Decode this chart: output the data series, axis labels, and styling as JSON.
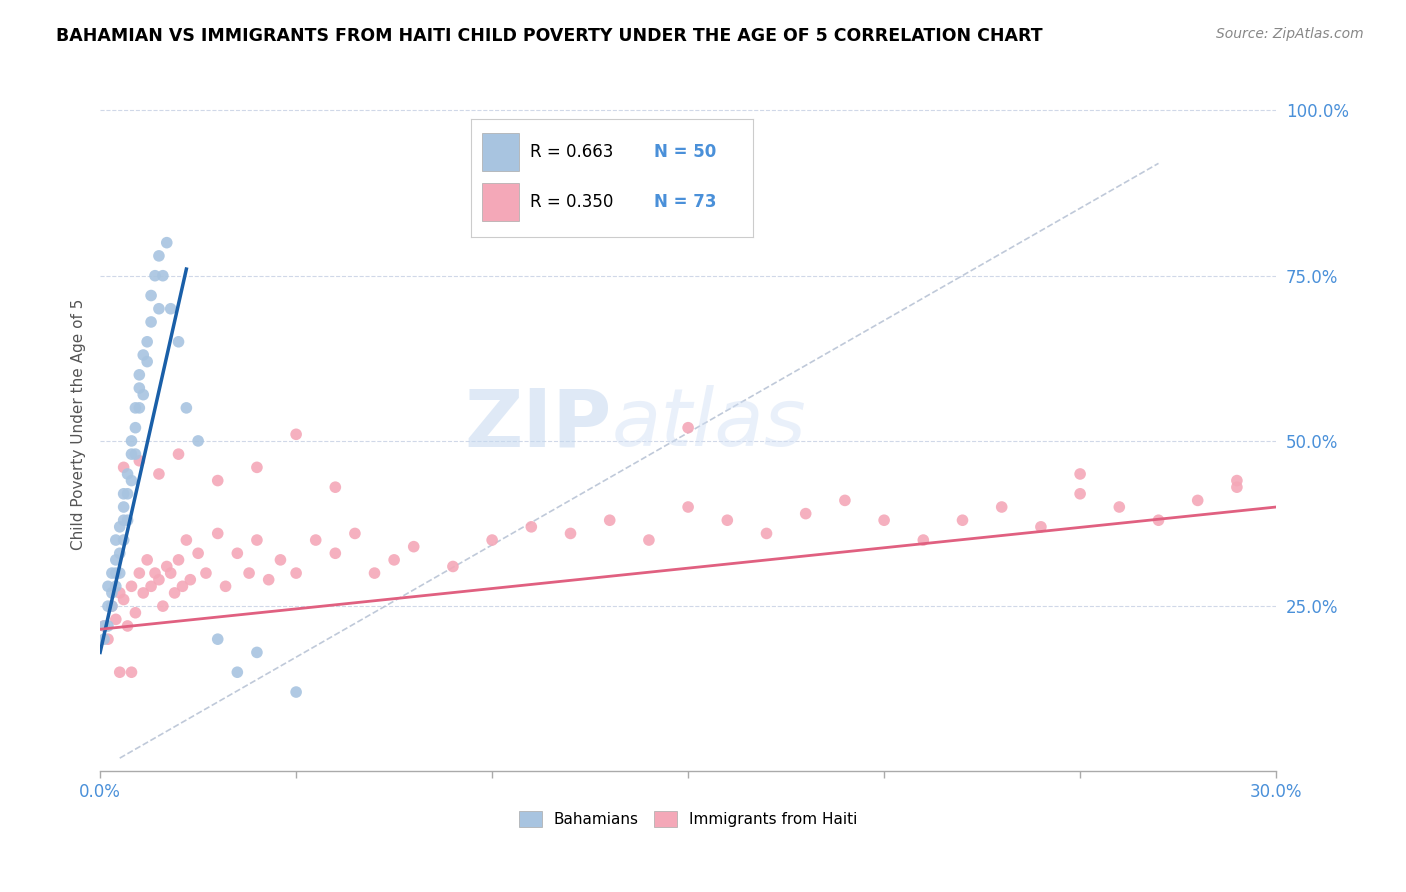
{
  "title": "BAHAMIAN VS IMMIGRANTS FROM HAITI CHILD POVERTY UNDER THE AGE OF 5 CORRELATION CHART",
  "source": "Source: ZipAtlas.com",
  "ylabel": "Child Poverty Under the Age of 5",
  "xlim": [
    0.0,
    0.3
  ],
  "ylim": [
    0.0,
    1.05
  ],
  "blue_color": "#a8c4e0",
  "pink_color": "#f4a8b8",
  "blue_line_color": "#1a5fa8",
  "pink_line_color": "#e06080",
  "diagonal_color": "#b0bcd0",
  "legend_R1": "R = 0.663",
  "legend_N1": "N = 50",
  "legend_R2": "R = 0.350",
  "legend_N2": "N = 73",
  "watermark_zip": "ZIP",
  "watermark_atlas": "atlas",
  "tick_color": "#4a90d9",
  "bahamians_x": [
    0.001,
    0.001,
    0.002,
    0.002,
    0.002,
    0.003,
    0.003,
    0.003,
    0.004,
    0.004,
    0.004,
    0.004,
    0.005,
    0.005,
    0.005,
    0.006,
    0.006,
    0.006,
    0.006,
    0.007,
    0.007,
    0.007,
    0.008,
    0.008,
    0.008,
    0.009,
    0.009,
    0.009,
    0.01,
    0.01,
    0.01,
    0.011,
    0.011,
    0.012,
    0.012,
    0.013,
    0.013,
    0.014,
    0.015,
    0.015,
    0.016,
    0.017,
    0.018,
    0.02,
    0.022,
    0.025,
    0.03,
    0.035,
    0.04,
    0.05
  ],
  "bahamians_y": [
    0.2,
    0.22,
    0.25,
    0.22,
    0.28,
    0.27,
    0.3,
    0.25,
    0.32,
    0.3,
    0.28,
    0.35,
    0.33,
    0.37,
    0.3,
    0.4,
    0.38,
    0.35,
    0.42,
    0.45,
    0.42,
    0.38,
    0.48,
    0.5,
    0.44,
    0.52,
    0.55,
    0.48,
    0.58,
    0.55,
    0.6,
    0.63,
    0.57,
    0.65,
    0.62,
    0.68,
    0.72,
    0.75,
    0.7,
    0.78,
    0.75,
    0.8,
    0.7,
    0.65,
    0.55,
    0.5,
    0.2,
    0.15,
    0.18,
    0.12
  ],
  "haiti_x": [
    0.001,
    0.002,
    0.003,
    0.004,
    0.005,
    0.005,
    0.006,
    0.007,
    0.008,
    0.008,
    0.009,
    0.01,
    0.011,
    0.012,
    0.013,
    0.014,
    0.015,
    0.016,
    0.017,
    0.018,
    0.019,
    0.02,
    0.021,
    0.022,
    0.023,
    0.025,
    0.027,
    0.03,
    0.032,
    0.035,
    0.038,
    0.04,
    0.043,
    0.046,
    0.05,
    0.055,
    0.06,
    0.065,
    0.07,
    0.075,
    0.08,
    0.09,
    0.1,
    0.11,
    0.12,
    0.13,
    0.14,
    0.15,
    0.16,
    0.17,
    0.18,
    0.19,
    0.2,
    0.21,
    0.22,
    0.23,
    0.24,
    0.25,
    0.26,
    0.27,
    0.28,
    0.29,
    0.006,
    0.01,
    0.015,
    0.02,
    0.03,
    0.04,
    0.05,
    0.06,
    0.15,
    0.25,
    0.29
  ],
  "haiti_y": [
    0.22,
    0.2,
    0.25,
    0.23,
    0.27,
    0.15,
    0.26,
    0.22,
    0.28,
    0.15,
    0.24,
    0.3,
    0.27,
    0.32,
    0.28,
    0.3,
    0.29,
    0.25,
    0.31,
    0.3,
    0.27,
    0.32,
    0.28,
    0.35,
    0.29,
    0.33,
    0.3,
    0.36,
    0.28,
    0.33,
    0.3,
    0.35,
    0.29,
    0.32,
    0.3,
    0.35,
    0.33,
    0.36,
    0.3,
    0.32,
    0.34,
    0.31,
    0.35,
    0.37,
    0.36,
    0.38,
    0.35,
    0.4,
    0.38,
    0.36,
    0.39,
    0.41,
    0.38,
    0.35,
    0.38,
    0.4,
    0.37,
    0.42,
    0.4,
    0.38,
    0.41,
    0.43,
    0.46,
    0.47,
    0.45,
    0.48,
    0.44,
    0.46,
    0.51,
    0.43,
    0.52,
    0.45,
    0.44
  ]
}
